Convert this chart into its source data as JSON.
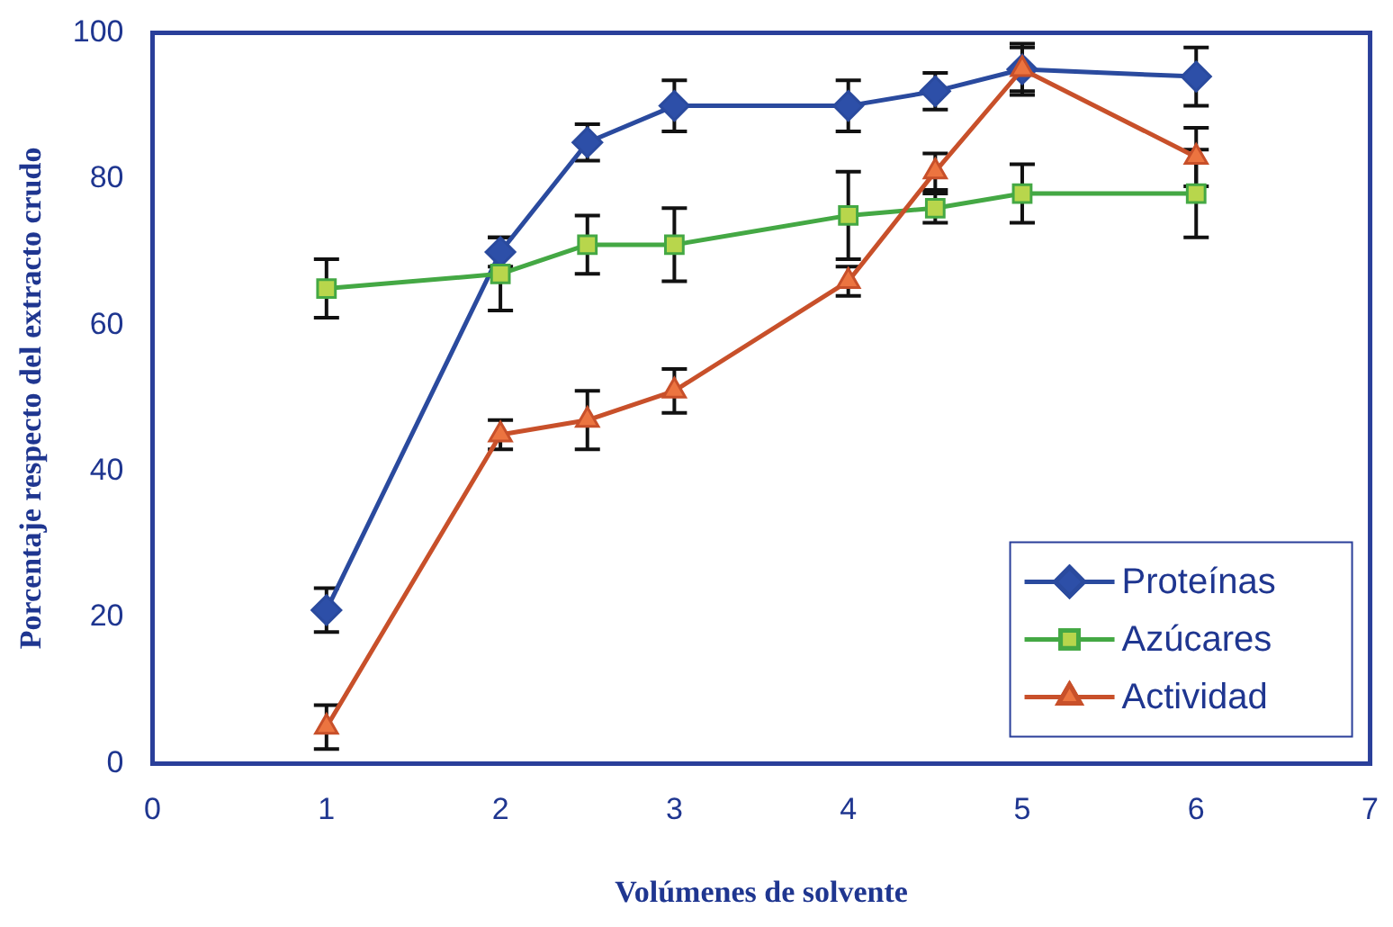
{
  "chart_data": {
    "type": "line",
    "xlabel": "Volúmenes de solvente",
    "ylabel": "Porcentaje respecto del extracto crudo",
    "xlim": [
      0,
      7
    ],
    "xticks": [
      0,
      1,
      2,
      3,
      4,
      5,
      6,
      7
    ],
    "ylim": [
      0,
      100
    ],
    "yticks": [
      0,
      20,
      40,
      60,
      80,
      100
    ],
    "grid": false,
    "legend": "bottom right",
    "series": [
      {
        "name": "Proteínas",
        "color": "#2a4a9e",
        "marker": "diamond",
        "x": [
          1,
          2,
          2.5,
          3,
          4,
          4.5,
          5,
          6
        ],
        "values": [
          21,
          70,
          85,
          90,
          90,
          92,
          95,
          94
        ],
        "errors": [
          3,
          2,
          2.5,
          3.5,
          3.5,
          2.5,
          3.5,
          4
        ]
      },
      {
        "name": "Azúcares",
        "color": "#44a844",
        "marker": "square",
        "x": [
          1,
          2,
          2.5,
          3,
          4,
          4.5,
          5,
          6
        ],
        "values": [
          65,
          67,
          71,
          71,
          75,
          76,
          78,
          78
        ],
        "errors": [
          4,
          5,
          4,
          5,
          6,
          2,
          4,
          6
        ]
      },
      {
        "name": "Actividad",
        "color": "#c8502a",
        "marker": "triangle",
        "x": [
          1,
          2,
          2.5,
          3,
          4,
          4.5,
          5,
          6
        ],
        "values": [
          5,
          45,
          47,
          51,
          66,
          81,
          95,
          83
        ],
        "errors": [
          3,
          2,
          4,
          3,
          2,
          2.5,
          3,
          4
        ]
      }
    ]
  }
}
